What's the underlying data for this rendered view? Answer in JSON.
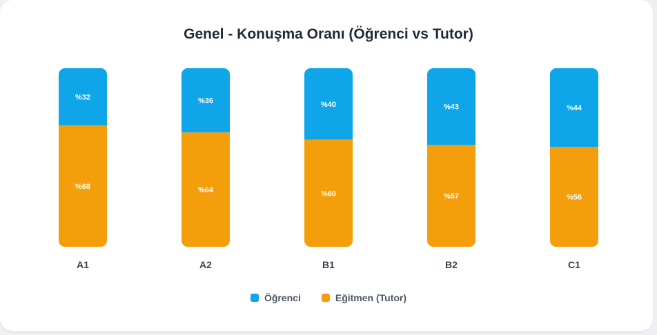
{
  "chart_data": {
    "type": "bar",
    "stacked": true,
    "orientation": "vertical",
    "title": "Genel - Konuşma Oranı (Öğrenci vs Tutor)",
    "categories": [
      "A1",
      "A2",
      "B1",
      "B2",
      "C1"
    ],
    "series": [
      {
        "name": "Öğrenci",
        "color": "#0ea5e9",
        "values": [
          32,
          36,
          40,
          43,
          44
        ],
        "labels": [
          "%32",
          "%36",
          "%40",
          "%43",
          "%44"
        ]
      },
      {
        "name": "Eğitmen (Tutor)",
        "color": "#f59e0b",
        "values": [
          68,
          64,
          60,
          57,
          56
        ],
        "labels": [
          "%68",
          "%64",
          "%60",
          "%57",
          "%56"
        ]
      }
    ],
    "ylim": [
      0,
      100
    ],
    "grid": false,
    "legend_position": "bottom"
  }
}
